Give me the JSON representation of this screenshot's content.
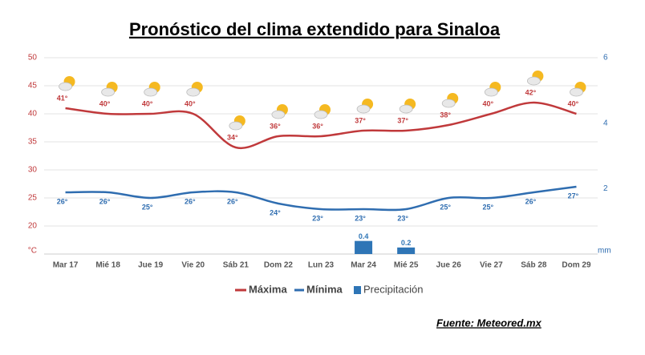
{
  "chart_data": {
    "type": "line",
    "title": "Pronóstico del clima extendido para Sinaloa",
    "categories": [
      "Mar 17",
      "Mié 18",
      "Jue 19",
      "Vie 20",
      "Sáb 21",
      "Dom 22",
      "Lun 23",
      "Mar 24",
      "Mié 25",
      "Jue 26",
      "Vie 27",
      "Sáb 28",
      "Dom 29"
    ],
    "series": [
      {
        "name": "Máxima",
        "color": "#c0393b",
        "values": [
          41,
          40,
          40,
          40,
          34,
          36,
          36,
          37,
          37,
          38,
          40,
          42,
          40
        ],
        "value_labels": [
          "41°",
          "40°",
          "40°",
          "40°",
          "34°",
          "36°",
          "36°",
          "37°",
          "37°",
          "38°",
          "40°",
          "42°",
          "40°"
        ]
      },
      {
        "name": "Mínima",
        "color": "#2f6db0",
        "values": [
          26,
          26,
          25,
          26,
          26,
          24,
          23,
          23,
          23,
          25,
          25,
          26,
          27
        ],
        "value_labels": [
          "26°",
          "26°",
          "25°",
          "26°",
          "26°",
          "24°",
          "23°",
          "23°",
          "23°",
          "25°",
          "25°",
          "26°",
          "27°"
        ]
      },
      {
        "name": "Precipitación",
        "color": "#2e75b6",
        "type": "bar",
        "axis": "y2",
        "values": [
          0,
          0,
          0,
          0,
          0,
          0,
          0,
          0.4,
          0.2,
          0,
          0,
          0,
          0
        ]
      }
    ],
    "ylim": [
      15,
      50
    ],
    "yticks": [
      20,
      25,
      30,
      35,
      40,
      45,
      50
    ],
    "y_unit": "°C",
    "y2lim": [
      0,
      6
    ],
    "y2ticks": [
      2,
      4,
      6
    ],
    "y2_unit": "mm",
    "grid": true,
    "source": "Fuente: Meteored.mx"
  }
}
